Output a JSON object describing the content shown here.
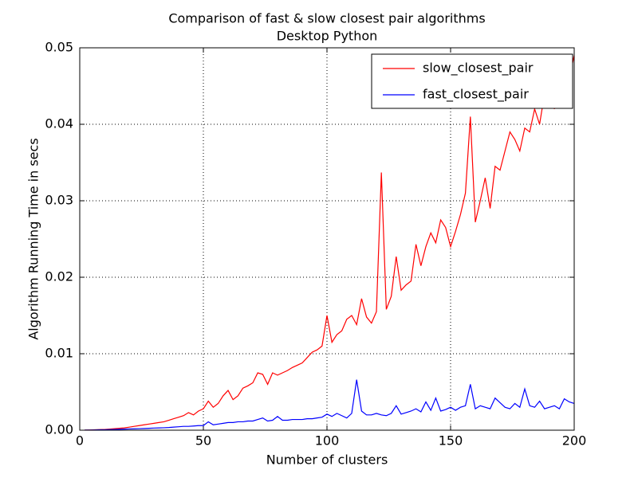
{
  "chart_data": {
    "type": "line",
    "title": "Comparison of fast & slow closest pair algorithms",
    "subtitle": "Desktop Python",
    "x_label": "Number of clusters",
    "y_label": "Algorithm Running Time in secs",
    "x": [
      2,
      4,
      6,
      8,
      10,
      12,
      14,
      16,
      18,
      20,
      22,
      24,
      26,
      28,
      30,
      32,
      34,
      36,
      38,
      40,
      42,
      44,
      46,
      48,
      50,
      52,
      54,
      56,
      58,
      60,
      62,
      64,
      66,
      68,
      70,
      72,
      74,
      76,
      78,
      80,
      82,
      84,
      86,
      88,
      90,
      92,
      94,
      96,
      98,
      100,
      102,
      104,
      106,
      108,
      110,
      112,
      114,
      116,
      118,
      120,
      122,
      124,
      126,
      128,
      130,
      132,
      134,
      136,
      138,
      140,
      142,
      144,
      146,
      148,
      150,
      152,
      154,
      156,
      158,
      160,
      162,
      164,
      166,
      168,
      170,
      172,
      174,
      176,
      178,
      180,
      182,
      184,
      186,
      188,
      190,
      192,
      194,
      196,
      198,
      200
    ],
    "series": [
      {
        "name": "slow_closest_pair",
        "color": "#ff0000",
        "values": [
          1e-05,
          3e-05,
          5e-05,
          8e-05,
          0.0001,
          0.00015,
          0.0002,
          0.00025,
          0.0003,
          0.0004,
          0.0005,
          0.0006,
          0.0007,
          0.0008,
          0.0009,
          0.001,
          0.0011,
          0.0013,
          0.0015,
          0.0017,
          0.0019,
          0.0023,
          0.002,
          0.0025,
          0.0028,
          0.0038,
          0.003,
          0.0035,
          0.0045,
          0.0052,
          0.004,
          0.0045,
          0.0055,
          0.0058,
          0.0062,
          0.0075,
          0.0073,
          0.006,
          0.0075,
          0.0072,
          0.0075,
          0.0078,
          0.0082,
          0.0085,
          0.0088,
          0.0095,
          0.0102,
          0.0105,
          0.011,
          0.015,
          0.0115,
          0.0125,
          0.013,
          0.0145,
          0.015,
          0.0138,
          0.0172,
          0.0148,
          0.014,
          0.0155,
          0.0337,
          0.0158,
          0.0175,
          0.0227,
          0.0183,
          0.019,
          0.0195,
          0.0243,
          0.0215,
          0.024,
          0.0258,
          0.0245,
          0.0275,
          0.0265,
          0.024,
          0.026,
          0.0282,
          0.031,
          0.041,
          0.0272,
          0.03,
          0.033,
          0.029,
          0.0345,
          0.034,
          0.0365,
          0.039,
          0.038,
          0.0365,
          0.0395,
          0.039,
          0.042,
          0.04,
          0.044,
          0.0445,
          0.042,
          0.046,
          0.0475,
          0.046,
          0.049
        ]
      },
      {
        "name": "fast_closest_pair",
        "color": "#0000ff",
        "values": [
          1e-05,
          2e-05,
          3e-05,
          5e-05,
          6e-05,
          8e-05,
          0.0001,
          0.00012,
          0.00014,
          0.00016,
          0.00018,
          0.0002,
          0.00022,
          0.00025,
          0.00028,
          0.0003,
          0.00032,
          0.00035,
          0.0004,
          0.00045,
          0.0005,
          0.0005,
          0.00055,
          0.0006,
          0.0006,
          0.0011,
          0.0007,
          0.0008,
          0.0009,
          0.001,
          0.001,
          0.0011,
          0.0011,
          0.0012,
          0.0012,
          0.0014,
          0.0016,
          0.0012,
          0.0013,
          0.0018,
          0.0013,
          0.0013,
          0.0014,
          0.0014,
          0.0014,
          0.0015,
          0.0015,
          0.0016,
          0.0017,
          0.0021,
          0.0018,
          0.0022,
          0.0019,
          0.0016,
          0.0022,
          0.0066,
          0.0025,
          0.002,
          0.002,
          0.0022,
          0.002,
          0.0019,
          0.0022,
          0.0032,
          0.0021,
          0.0023,
          0.0025,
          0.0028,
          0.0024,
          0.0037,
          0.0026,
          0.0042,
          0.0025,
          0.0027,
          0.003,
          0.0026,
          0.003,
          0.0032,
          0.006,
          0.0028,
          0.0032,
          0.003,
          0.0028,
          0.0042,
          0.0036,
          0.003,
          0.0028,
          0.0035,
          0.003,
          0.0054,
          0.0032,
          0.003,
          0.0038,
          0.0028,
          0.003,
          0.0032,
          0.0028,
          0.0041,
          0.0037,
          0.0035
        ]
      }
    ],
    "xlim": [
      0,
      200
    ],
    "xticks": [
      0,
      50,
      100,
      150,
      200
    ],
    "ylim": [
      0,
      0.05
    ],
    "yticks": [
      {
        "value": 0,
        "label": "0.00"
      },
      {
        "value": 0.01,
        "label": "0.01"
      },
      {
        "value": 0.02,
        "label": "0.02"
      },
      {
        "value": 0.03,
        "label": "0.03"
      },
      {
        "value": 0.04,
        "label": "0.04"
      },
      {
        "value": 0.05,
        "label": "0.05"
      }
    ],
    "grid": true,
    "legend": "upper right"
  }
}
